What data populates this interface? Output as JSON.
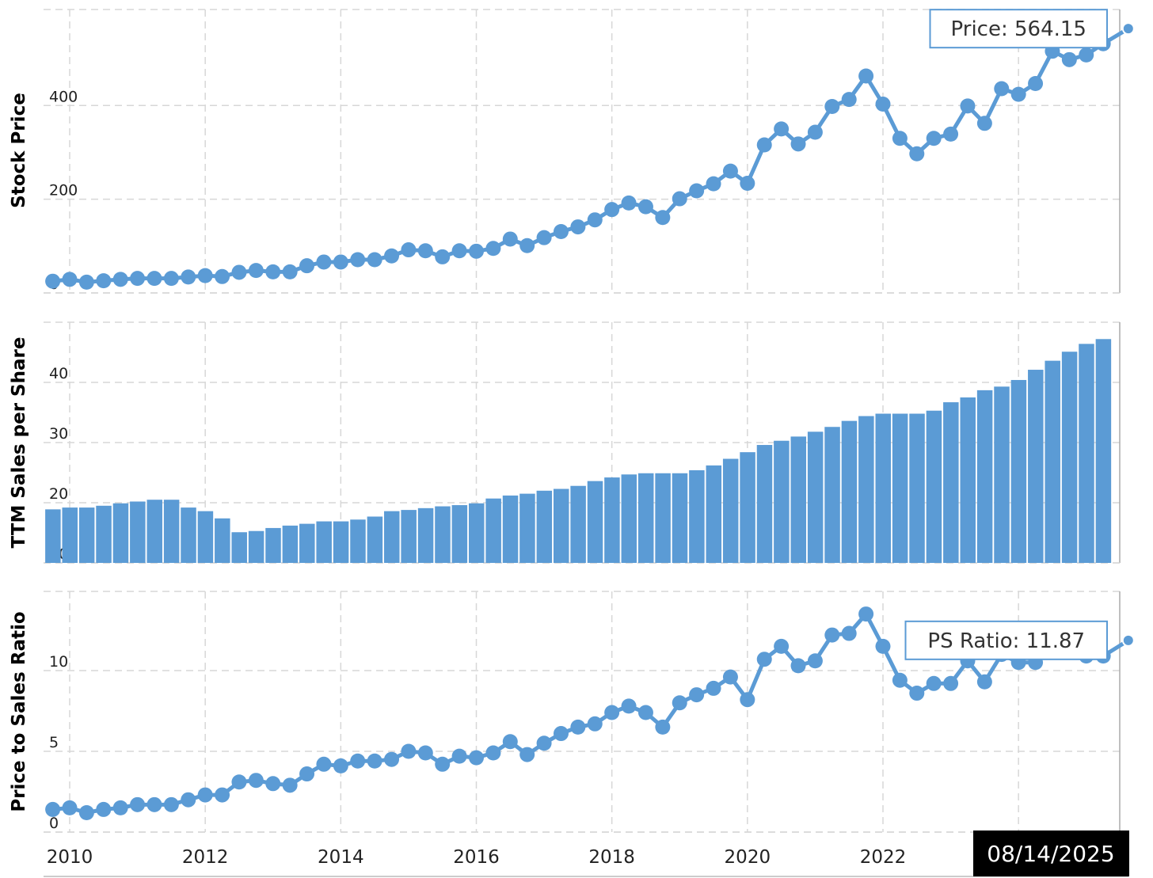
{
  "chart_data": [
    {
      "type": "line",
      "ylabel": "Stock Price",
      "ylim": [
        0,
        570
      ],
      "yticks": [
        0,
        200,
        400
      ],
      "color": "#5b9bd5",
      "tooltip": "Price: 564.15",
      "x": [
        2009.75,
        2010.0,
        2010.25,
        2010.5,
        2010.75,
        2011.0,
        2011.25,
        2011.5,
        2011.75,
        2012.0,
        2012.25,
        2012.5,
        2012.75,
        2013.0,
        2013.25,
        2013.5,
        2013.75,
        2014.0,
        2014.25,
        2014.5,
        2014.75,
        2015.0,
        2015.25,
        2015.5,
        2015.75,
        2016.0,
        2016.25,
        2016.5,
        2016.75,
        2017.0,
        2017.25,
        2017.5,
        2017.75,
        2018.0,
        2018.25,
        2018.5,
        2018.75,
        2019.0,
        2019.25,
        2019.5,
        2019.75,
        2020.0,
        2020.25,
        2020.5,
        2020.75,
        2021.0,
        2021.25,
        2021.5,
        2021.75,
        2022.0,
        2022.25,
        2022.5,
        2022.75,
        2023.0,
        2023.25,
        2023.5,
        2023.75,
        2024.0,
        2024.25,
        2024.5,
        2024.75,
        2025.0,
        2025.25,
        2025.62
      ],
      "values": [
        25,
        29,
        23,
        26,
        29,
        31,
        31,
        31,
        34,
        37,
        35,
        44,
        48,
        45,
        45,
        58,
        66,
        66,
        71,
        71,
        79,
        92,
        90,
        77,
        90,
        89,
        95,
        115,
        101,
        118,
        131,
        141,
        156,
        178,
        192,
        184,
        161,
        201,
        218,
        233,
        260,
        234,
        316,
        350,
        318,
        343,
        398,
        413,
        463,
        403,
        330,
        297,
        330,
        339,
        399,
        362,
        436,
        424,
        447,
        516,
        498,
        508,
        532,
        564.15
      ]
    },
    {
      "type": "bar",
      "ylabel": "TTM Sales per Share",
      "ylim": [
        10,
        50
      ],
      "yticks": [
        10,
        20,
        30,
        40
      ],
      "color": "#5b9bd5",
      "x": [
        2009.75,
        2010.0,
        2010.25,
        2010.5,
        2010.75,
        2011.0,
        2011.25,
        2011.5,
        2011.75,
        2012.0,
        2012.25,
        2012.5,
        2012.75,
        2013.0,
        2013.25,
        2013.5,
        2013.75,
        2014.0,
        2014.25,
        2014.5,
        2014.75,
        2015.0,
        2015.25,
        2015.5,
        2015.75,
        2016.0,
        2016.25,
        2016.5,
        2016.75,
        2017.0,
        2017.25,
        2017.5,
        2017.75,
        2018.0,
        2018.25,
        2018.5,
        2018.75,
        2019.0,
        2019.25,
        2019.5,
        2019.75,
        2020.0,
        2020.25,
        2020.5,
        2020.75,
        2021.0,
        2021.25,
        2021.5,
        2021.75,
        2022.0,
        2022.25,
        2022.5,
        2022.75,
        2023.0,
        2023.25,
        2023.5,
        2023.75,
        2024.0,
        2024.25,
        2024.5,
        2024.75,
        2025.0,
        2025.25
      ],
      "values": [
        18.9,
        19.2,
        19.2,
        19.5,
        19.9,
        20.2,
        20.5,
        20.5,
        19.2,
        18.6,
        17.4,
        15.1,
        15.3,
        15.8,
        16.2,
        16.5,
        16.9,
        16.9,
        17.2,
        17.7,
        18.6,
        18.8,
        19.1,
        19.4,
        19.6,
        19.9,
        20.7,
        21.2,
        21.5,
        22.0,
        22.3,
        22.8,
        23.6,
        24.2,
        24.7,
        24.9,
        24.9,
        24.9,
        25.4,
        26.2,
        27.3,
        28.4,
        29.6,
        30.3,
        31.0,
        31.8,
        32.6,
        33.6,
        34.4,
        34.8,
        34.8,
        34.8,
        35.3,
        36.7,
        37.5,
        38.7,
        39.3,
        40.4,
        42.1,
        43.6,
        45.1,
        46.4,
        47.2
      ]
    },
    {
      "type": "line",
      "ylabel": "Price to Sales Ratio",
      "ylim": [
        0,
        13.6
      ],
      "yticks": [
        0,
        5,
        10
      ],
      "color": "#5b9bd5",
      "tooltip": "PS Ratio: 11.87",
      "x": [
        2009.75,
        2010.0,
        2010.25,
        2010.5,
        2010.75,
        2011.0,
        2011.25,
        2011.5,
        2011.75,
        2012.0,
        2012.25,
        2012.5,
        2012.75,
        2013.0,
        2013.25,
        2013.5,
        2013.75,
        2014.0,
        2014.25,
        2014.5,
        2014.75,
        2015.0,
        2015.25,
        2015.5,
        2015.75,
        2016.0,
        2016.25,
        2016.5,
        2016.75,
        2017.0,
        2017.25,
        2017.5,
        2017.75,
        2018.0,
        2018.25,
        2018.5,
        2018.75,
        2019.0,
        2019.25,
        2019.5,
        2019.75,
        2020.0,
        2020.25,
        2020.5,
        2020.75,
        2021.0,
        2021.25,
        2021.5,
        2021.75,
        2022.0,
        2022.25,
        2022.5,
        2022.75,
        2023.0,
        2023.25,
        2023.5,
        2023.75,
        2024.0,
        2024.25,
        2024.5,
        2024.75,
        2025.0,
        2025.25,
        2025.62
      ],
      "values": [
        1.4,
        1.5,
        1.2,
        1.4,
        1.5,
        1.7,
        1.7,
        1.7,
        2.0,
        2.3,
        2.3,
        3.1,
        3.2,
        3.0,
        2.9,
        3.6,
        4.2,
        4.1,
        4.4,
        4.4,
        4.5,
        5.0,
        4.9,
        4.2,
        4.7,
        4.6,
        4.9,
        5.6,
        4.8,
        5.5,
        6.1,
        6.5,
        6.7,
        7.4,
        7.8,
        7.4,
        6.5,
        8.0,
        8.5,
        8.9,
        9.6,
        8.2,
        10.7,
        11.5,
        10.3,
        10.6,
        12.2,
        12.3,
        13.5,
        11.5,
        9.4,
        8.6,
        9.2,
        9.2,
        10.6,
        9.3,
        11.0,
        10.5,
        10.5,
        11.9,
        11.2,
        10.9,
        10.9,
        11.87
      ]
    }
  ],
  "xaxis": {
    "ticks": [
      "2010",
      "2012",
      "2014",
      "2016",
      "2018",
      "2020",
      "2022"
    ],
    "tick_values": [
      2010,
      2012,
      2014,
      2016,
      2018,
      2020,
      2022
    ],
    "xlim": [
      2009.75,
      2025.62
    ],
    "date_label": "08/14/2025"
  }
}
